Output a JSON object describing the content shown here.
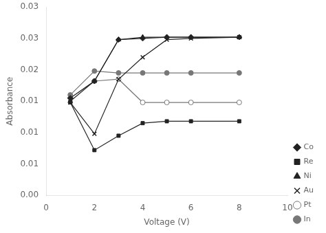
{
  "chart_data": {
    "type": "line",
    "xlabel": "Voltage (V)",
    "ylabel": "Absorbance",
    "x": [
      1,
      2,
      3,
      4,
      5,
      6,
      8
    ],
    "xlim": [
      0,
      10
    ],
    "xticks": [
      0,
      2,
      4,
      6,
      8,
      10
    ],
    "ylim": [
      0.0,
      0.03
    ],
    "yticks": [
      {
        "value": 0.0,
        "label": "0.00"
      },
      {
        "value": 0.005,
        "label": "0.01"
      },
      0.01,
      {
        "value": 0.015,
        "label": "0.01"
      },
      0.02,
      {
        "value": 0.025,
        "label": "0.03"
      },
      0.03
    ],
    "grid": false,
    "legend": "lower right",
    "series": [
      {
        "name": "Co",
        "color": "#222222",
        "marker": "diamond",
        "values": [
          0.0155,
          0.0182,
          0.0248,
          0.025,
          0.0252,
          0.0252,
          0.0252
        ]
      },
      {
        "name": "Re",
        "color": "#222222",
        "marker": "square",
        "values": [
          0.0148,
          0.0072,
          0.0095,
          0.0115,
          0.0118,
          0.0118,
          0.0118
        ]
      },
      {
        "name": "Ni",
        "color": "#222222",
        "marker": "triangle",
        "values": [
          0.015,
          0.0182,
          0.0248,
          0.0252,
          0.0252,
          0.0252,
          0.0252
        ]
      },
      {
        "name": "Au",
        "color": "#222222",
        "marker": "x",
        "values": [
          0.0148,
          0.0098,
          0.0185,
          0.022,
          0.0248,
          0.025,
          0.0252
        ]
      },
      {
        "name": "Pt",
        "color": "#777777",
        "marker": "open_circle",
        "values": [
          0.0155,
          0.0182,
          0.0185,
          0.0148,
          0.0148,
          0.0148,
          0.0148
        ]
      },
      {
        "name": "In",
        "color": "#777777",
        "marker": "circle",
        "values": [
          0.016,
          0.0198,
          0.0195,
          0.0195,
          0.0195,
          0.0195,
          0.0195
        ]
      }
    ]
  }
}
